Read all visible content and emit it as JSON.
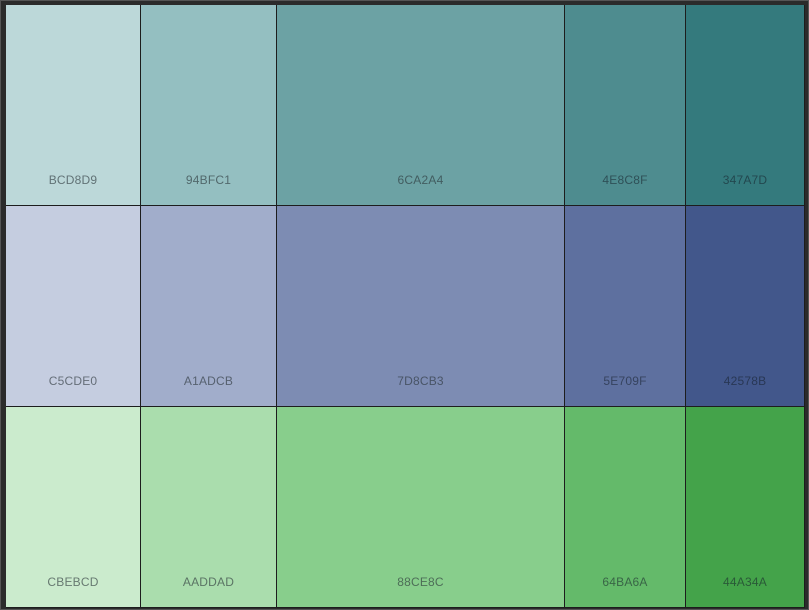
{
  "palette": {
    "rows": [
      {
        "name": "teal",
        "swatches": [
          {
            "hex": "BCD8D9",
            "color": "#BCD8D9"
          },
          {
            "hex": "94BFC1",
            "color": "#94BFC1"
          },
          {
            "hex": "6CA2A4",
            "color": "#6CA2A4"
          },
          {
            "hex": "4E8C8F",
            "color": "#4E8C8F"
          },
          {
            "hex": "347A7D",
            "color": "#347A7D"
          }
        ]
      },
      {
        "name": "slate-blue",
        "swatches": [
          {
            "hex": "C5CDE0",
            "color": "#C5CDE0"
          },
          {
            "hex": "A1ADCB",
            "color": "#A1ADCB"
          },
          {
            "hex": "7D8CB3",
            "color": "#7D8CB3"
          },
          {
            "hex": "5E709F",
            "color": "#5E709F"
          },
          {
            "hex": "42578B",
            "color": "#42578B"
          }
        ]
      },
      {
        "name": "green",
        "swatches": [
          {
            "hex": "CBEBCD",
            "color": "#CBEBCD"
          },
          {
            "hex": "AADDAD",
            "color": "#AADDAD"
          },
          {
            "hex": "88CE8C",
            "color": "#88CE8C"
          },
          {
            "hex": "64BA6A",
            "color": "#64BA6A"
          },
          {
            "hex": "44A34A",
            "color": "#44A34A"
          }
        ]
      }
    ]
  }
}
